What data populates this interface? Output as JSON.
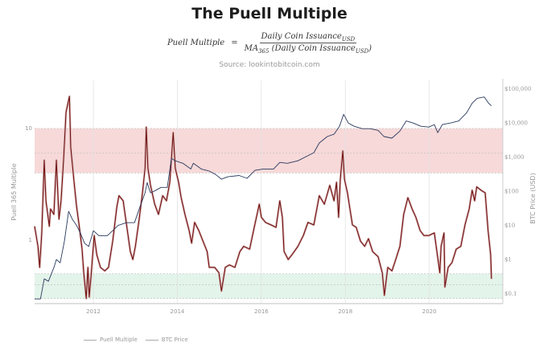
{
  "chart_data": {
    "type": "line",
    "title": "The Puell Multiple",
    "formula": {
      "lhs": "Puell Multiple",
      "eq": "=",
      "numerator": "Daily Coin Issuance",
      "numerator_sub": "USD",
      "denominator_prefix": "MA",
      "denominator_prefix_sub": "365",
      "denominator": " (Daily Coin Issuance",
      "denominator_sub": "USD",
      "denominator_suffix": ")"
    },
    "subtitle": "Source: lookintobitcoin.com",
    "xlabel": "",
    "ylabel_left": "Puell 365 Multiple",
    "ylabel_right": "BTC Price (USD)",
    "xlim": [
      2010.6,
      2021.75
    ],
    "ylim_left": [
      0.27,
      27
    ],
    "ylim_right": [
      0.051,
      178000
    ],
    "y_scale": "log",
    "x_ticks": [
      2012,
      2014,
      2016,
      2018,
      2020
    ],
    "x_tick_labels": [
      "2012",
      "2014",
      "2016",
      "2018",
      "2020"
    ],
    "left_ticks": [
      10,
      1
    ],
    "left_tick_labels": [
      "10",
      "1"
    ],
    "right_ticks": [
      100000,
      10000,
      1000,
      100,
      10,
      1,
      0.1
    ],
    "right_tick_labels": [
      "$100,000",
      "$10,000",
      "$1,000",
      "$100",
      "$10",
      "$1",
      "$0.1"
    ],
    "grid": "vertical",
    "legend_placement": "bottom-left",
    "bands": [
      {
        "range": [
          4,
          10
        ],
        "mid": 6,
        "color": "#f7d9d9"
      },
      {
        "range": [
          0.3,
          0.5
        ],
        "mid": 0.4,
        "color": "#e3f4ea"
      }
    ],
    "series": [
      {
        "name": "Puell Multiple",
        "axis": "left",
        "color": "#6e0c0c",
        "points": [
          [
            2010.6,
            1.33
          ],
          [
            2010.68,
            0.88
          ],
          [
            2010.72,
            0.57
          ],
          [
            2010.77,
            1.16
          ],
          [
            2010.83,
            5.2
          ],
          [
            2010.87,
            2.25
          ],
          [
            2010.95,
            1.33
          ],
          [
            2010.98,
            1.9
          ],
          [
            2011.06,
            1.7
          ],
          [
            2011.12,
            5.2
          ],
          [
            2011.18,
            1.54
          ],
          [
            2011.23,
            2.25
          ],
          [
            2011.29,
            5.2
          ],
          [
            2011.35,
            14.0
          ],
          [
            2011.43,
            19.4
          ],
          [
            2011.46,
            6.8
          ],
          [
            2011.54,
            3.3
          ],
          [
            2011.6,
            2.0
          ],
          [
            2011.66,
            1.37
          ],
          [
            2011.73,
            0.83
          ],
          [
            2011.77,
            0.51
          ],
          [
            2011.83,
            0.3
          ],
          [
            2011.87,
            0.57
          ],
          [
            2011.9,
            0.31
          ],
          [
            2011.94,
            0.45
          ],
          [
            2012.02,
            1.1
          ],
          [
            2012.08,
            0.74
          ],
          [
            2012.17,
            0.57
          ],
          [
            2012.27,
            0.53
          ],
          [
            2012.36,
            0.57
          ],
          [
            2012.46,
            0.98
          ],
          [
            2012.56,
            2.0
          ],
          [
            2012.61,
            2.5
          ],
          [
            2012.71,
            2.25
          ],
          [
            2012.88,
            0.79
          ],
          [
            2012.94,
            0.67
          ],
          [
            2013.0,
            0.88
          ],
          [
            2013.09,
            1.54
          ],
          [
            2013.17,
            2.65
          ],
          [
            2013.23,
            4.4
          ],
          [
            2013.26,
            10.3
          ],
          [
            2013.3,
            4.4
          ],
          [
            2013.36,
            3.1
          ],
          [
            2013.46,
            2.1
          ],
          [
            2013.55,
            1.7
          ],
          [
            2013.65,
            2.5
          ],
          [
            2013.74,
            2.25
          ],
          [
            2013.82,
            3.3
          ],
          [
            2013.9,
            9.2
          ],
          [
            2013.95,
            4.4
          ],
          [
            2014.03,
            3.3
          ],
          [
            2014.09,
            2.4
          ],
          [
            2014.18,
            1.7
          ],
          [
            2014.28,
            1.22
          ],
          [
            2014.34,
            0.94
          ],
          [
            2014.41,
            1.44
          ],
          [
            2014.51,
            1.22
          ],
          [
            2014.61,
            0.98
          ],
          [
            2014.71,
            0.79
          ],
          [
            2014.76,
            0.57
          ],
          [
            2014.89,
            0.57
          ],
          [
            2014.99,
            0.51
          ],
          [
            2015.05,
            0.35
          ],
          [
            2015.14,
            0.57
          ],
          [
            2015.24,
            0.6
          ],
          [
            2015.37,
            0.57
          ],
          [
            2015.49,
            0.79
          ],
          [
            2015.58,
            0.88
          ],
          [
            2015.72,
            0.83
          ],
          [
            2015.83,
            1.3
          ],
          [
            2015.95,
            2.1
          ],
          [
            2016.0,
            1.6
          ],
          [
            2016.1,
            1.44
          ],
          [
            2016.23,
            1.37
          ],
          [
            2016.35,
            1.3
          ],
          [
            2016.44,
            2.25
          ],
          [
            2016.5,
            1.6
          ],
          [
            2016.54,
            0.79
          ],
          [
            2016.64,
            0.67
          ],
          [
            2016.73,
            0.74
          ],
          [
            2016.87,
            0.88
          ],
          [
            2017.0,
            1.1
          ],
          [
            2017.11,
            1.44
          ],
          [
            2017.25,
            1.37
          ],
          [
            2017.38,
            2.5
          ],
          [
            2017.5,
            2.1
          ],
          [
            2017.63,
            3.1
          ],
          [
            2017.73,
            2.25
          ],
          [
            2017.79,
            3.3
          ],
          [
            2017.84,
            1.6
          ],
          [
            2017.88,
            3.5
          ],
          [
            2017.94,
            6.3
          ],
          [
            2017.98,
            3.5
          ],
          [
            2018.05,
            2.65
          ],
          [
            2018.11,
            1.9
          ],
          [
            2018.17,
            1.37
          ],
          [
            2018.26,
            1.3
          ],
          [
            2018.36,
            0.98
          ],
          [
            2018.46,
            0.88
          ],
          [
            2018.55,
            1.03
          ],
          [
            2018.65,
            0.79
          ],
          [
            2018.78,
            0.71
          ],
          [
            2018.88,
            0.51
          ],
          [
            2018.93,
            0.32
          ],
          [
            2019.01,
            0.57
          ],
          [
            2019.11,
            0.53
          ],
          [
            2019.2,
            0.67
          ],
          [
            2019.3,
            0.88
          ],
          [
            2019.39,
            1.7
          ],
          [
            2019.49,
            2.4
          ],
          [
            2019.59,
            1.9
          ],
          [
            2019.68,
            1.6
          ],
          [
            2019.78,
            1.22
          ],
          [
            2019.87,
            1.1
          ],
          [
            2019.99,
            1.1
          ],
          [
            2020.12,
            1.16
          ],
          [
            2020.25,
            0.51
          ],
          [
            2020.28,
            0.88
          ],
          [
            2020.35,
            1.16
          ],
          [
            2020.37,
            0.38
          ],
          [
            2020.45,
            0.57
          ],
          [
            2020.54,
            0.63
          ],
          [
            2020.64,
            0.83
          ],
          [
            2020.75,
            0.88
          ],
          [
            2020.85,
            1.37
          ],
          [
            2020.95,
            1.9
          ],
          [
            2021.02,
            2.8
          ],
          [
            2021.08,
            2.25
          ],
          [
            2021.13,
            3.0
          ],
          [
            2021.23,
            2.8
          ],
          [
            2021.33,
            2.65
          ],
          [
            2021.4,
            1.22
          ],
          [
            2021.46,
            0.74
          ],
          [
            2021.48,
            0.45
          ]
        ]
      },
      {
        "name": "BTC Price",
        "axis": "right",
        "color": "#2a3a5e",
        "points": [
          [
            2010.6,
            0.07
          ],
          [
            2010.74,
            0.07
          ],
          [
            2010.83,
            0.27
          ],
          [
            2010.93,
            0.23
          ],
          [
            2011.06,
            0.58
          ],
          [
            2011.12,
            1.0
          ],
          [
            2011.21,
            0.8
          ],
          [
            2011.31,
            3.5
          ],
          [
            2011.41,
            25.8
          ],
          [
            2011.5,
            15
          ],
          [
            2011.6,
            10
          ],
          [
            2011.69,
            6
          ],
          [
            2011.79,
            3
          ],
          [
            2011.89,
            2.4
          ],
          [
            2012.0,
            7
          ],
          [
            2012.13,
            5
          ],
          [
            2012.33,
            5
          ],
          [
            2012.46,
            7
          ],
          [
            2012.59,
            10
          ],
          [
            2012.79,
            12
          ],
          [
            2012.98,
            12
          ],
          [
            2013.09,
            30
          ],
          [
            2013.23,
            90
          ],
          [
            2013.28,
            180
          ],
          [
            2013.36,
            90
          ],
          [
            2013.48,
            105
          ],
          [
            2013.61,
            130
          ],
          [
            2013.76,
            130
          ],
          [
            2013.86,
            920
          ],
          [
            2013.95,
            780
          ],
          [
            2014.13,
            660
          ],
          [
            2014.32,
            450
          ],
          [
            2014.38,
            660
          ],
          [
            2014.57,
            450
          ],
          [
            2014.76,
            390
          ],
          [
            2014.91,
            310
          ],
          [
            2015.05,
            225
          ],
          [
            2015.2,
            265
          ],
          [
            2015.47,
            290
          ],
          [
            2015.66,
            240
          ],
          [
            2015.85,
            410
          ],
          [
            2016.04,
            450
          ],
          [
            2016.29,
            450
          ],
          [
            2016.44,
            700
          ],
          [
            2016.62,
            660
          ],
          [
            2016.87,
            780
          ],
          [
            2017.06,
            1030
          ],
          [
            2017.25,
            1350
          ],
          [
            2017.38,
            2600
          ],
          [
            2017.57,
            4000
          ],
          [
            2017.73,
            4700
          ],
          [
            2017.86,
            8000
          ],
          [
            2017.96,
            18000
          ],
          [
            2018.07,
            10000
          ],
          [
            2018.21,
            8000
          ],
          [
            2018.4,
            6800
          ],
          [
            2018.59,
            6800
          ],
          [
            2018.78,
            6100
          ],
          [
            2018.92,
            4000
          ],
          [
            2019.11,
            3600
          ],
          [
            2019.3,
            5800
          ],
          [
            2019.45,
            11500
          ],
          [
            2019.61,
            10000
          ],
          [
            2019.8,
            8000
          ],
          [
            2019.99,
            7600
          ],
          [
            2020.12,
            9000
          ],
          [
            2020.2,
            5200
          ],
          [
            2020.31,
            9000
          ],
          [
            2020.51,
            10000
          ],
          [
            2020.7,
            11500
          ],
          [
            2020.89,
            20000
          ],
          [
            2021.02,
            38000
          ],
          [
            2021.14,
            53000
          ],
          [
            2021.31,
            58000
          ],
          [
            2021.41,
            38000
          ],
          [
            2021.48,
            32000
          ]
        ]
      }
    ]
  }
}
